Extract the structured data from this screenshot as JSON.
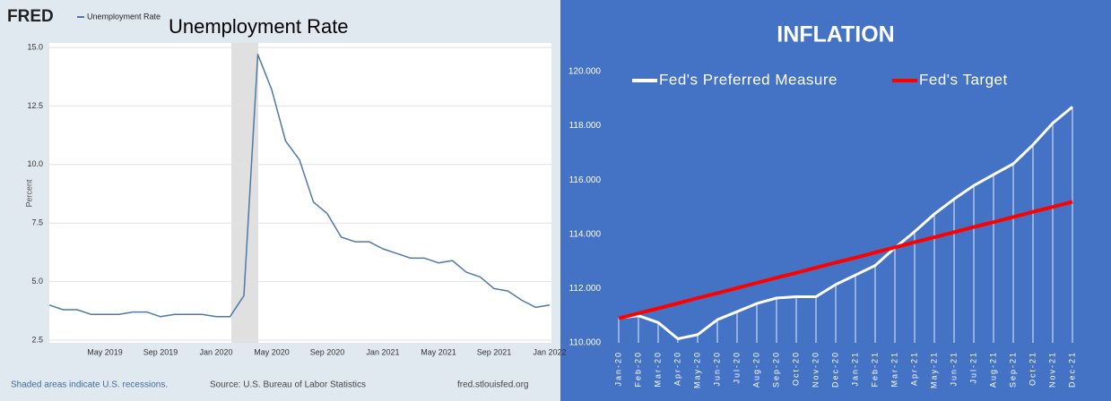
{
  "header": {
    "logo": "FRED"
  },
  "footer": {
    "note": "Shaded areas indicate U.S. recessions.",
    "source": "Source: U.S. Bureau of Labor Statistics",
    "site": "fred.stlouisfed.org"
  },
  "chart_data": [
    {
      "type": "line",
      "title": "Unemployment Rate",
      "ylabel": "Percent",
      "categories": [
        null,
        null,
        null,
        null,
        "May 2019",
        null,
        null,
        null,
        "Sep 2019",
        null,
        null,
        null,
        "Jan 2020",
        null,
        null,
        null,
        "May 2020",
        null,
        null,
        null,
        "Sep 2020",
        null,
        null,
        null,
        "Jan 2021",
        null,
        null,
        null,
        "May 2021",
        null,
        null,
        null,
        "Sep 2021",
        null,
        null,
        null,
        "Jan 2022"
      ],
      "series": [
        {
          "name": "Unemployment Rate",
          "color": "#4e79a7",
          "values": [
            4.0,
            3.8,
            3.8,
            3.6,
            3.6,
            3.6,
            3.7,
            3.7,
            3.5,
            3.6,
            3.6,
            3.6,
            3.5,
            3.5,
            4.4,
            14.7,
            13.2,
            11.0,
            10.2,
            8.4,
            7.9,
            6.9,
            6.7,
            6.7,
            6.4,
            6.2,
            6.0,
            6.0,
            5.8,
            5.9,
            5.4,
            5.2,
            4.7,
            4.6,
            4.2,
            3.9,
            4.0
          ]
        }
      ],
      "ylim": [
        2.5,
        15
      ],
      "yticks": [
        2.5,
        {
          "value": 5,
          "label": "5.0"
        },
        7.5,
        {
          "value": 10,
          "label": "10.0"
        },
        12.5,
        {
          "value": 15,
          "label": "15.0"
        }
      ],
      "grid": true,
      "legend": "top-left"
    },
    {
      "type": "line",
      "title": "INFLATION",
      "categories": [
        "Jan-20",
        "Feb-20",
        "Mar-20",
        "Apr-20",
        "May-20",
        "Jun-20",
        "Jul-20",
        "Aug-20",
        "Sep-20",
        "Oct-20",
        "Nov-20",
        "Dec-20",
        "Jan-21",
        "Feb-21",
        "Mar-21",
        "Apr-21",
        "May-21",
        "Jun-21",
        "Jul-21",
        "Aug-21",
        "Sep-21",
        "Oct-21",
        "Nov-21",
        "Dec-21"
      ],
      "series": [
        {
          "name": "Fed's Preferred Measure",
          "color": "#ffffff",
          "values": [
            110.92,
            111.0,
            110.75,
            110.15,
            110.3,
            110.85,
            111.15,
            111.45,
            111.65,
            111.7,
            111.7,
            112.15,
            112.5,
            112.85,
            113.5,
            114.1,
            114.75,
            115.3,
            115.8,
            116.2,
            116.6,
            117.3,
            118.1,
            118.7
          ]
        },
        {
          "name": "Fed's Target",
          "color": "#ff0000",
          "values": [
            110.9,
            111.09,
            111.27,
            111.46,
            111.65,
            111.83,
            112.02,
            112.21,
            112.4,
            112.58,
            112.77,
            112.96,
            113.14,
            113.33,
            113.52,
            113.71,
            113.89,
            114.08,
            114.27,
            114.45,
            114.64,
            114.83,
            115.01,
            115.2
          ]
        }
      ],
      "ylim": [
        110,
        120
      ],
      "yticks": [
        {
          "value": 110,
          "label": "110.000"
        },
        {
          "value": 112,
          "label": "112.000"
        },
        {
          "value": 114,
          "label": "114.000"
        },
        {
          "value": 116,
          "label": "116.000"
        },
        {
          "value": 118,
          "label": "118.000"
        },
        {
          "value": 120,
          "label": "120.000"
        }
      ],
      "grid": false,
      "drop_lines": true,
      "legend": "top"
    }
  ]
}
